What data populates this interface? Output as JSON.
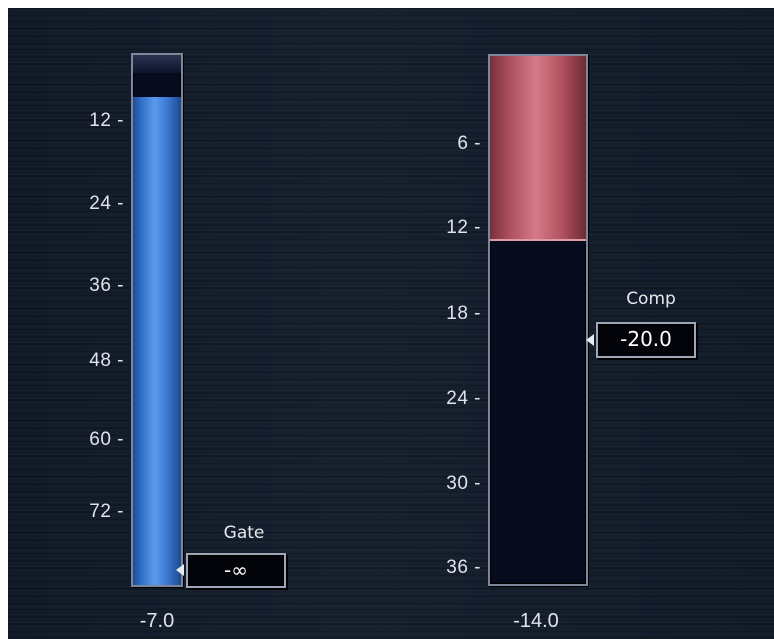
{
  "gate": {
    "label": "Gate",
    "threshold_value": "-∞",
    "meter_readout": "-7.0",
    "scale_ticks": [
      "12",
      "24",
      "36",
      "48",
      "60",
      "72"
    ],
    "meter_fill_fraction": 0.92,
    "fill_color": "#3b78d1"
  },
  "comp": {
    "label": "Comp",
    "threshold_value": "-20.0",
    "meter_readout": "-14.0",
    "scale_ticks": [
      "6",
      "12",
      "18",
      "24",
      "30",
      "36"
    ],
    "meter_fill_fraction": 0.35,
    "fill_color": "#c4626f"
  }
}
